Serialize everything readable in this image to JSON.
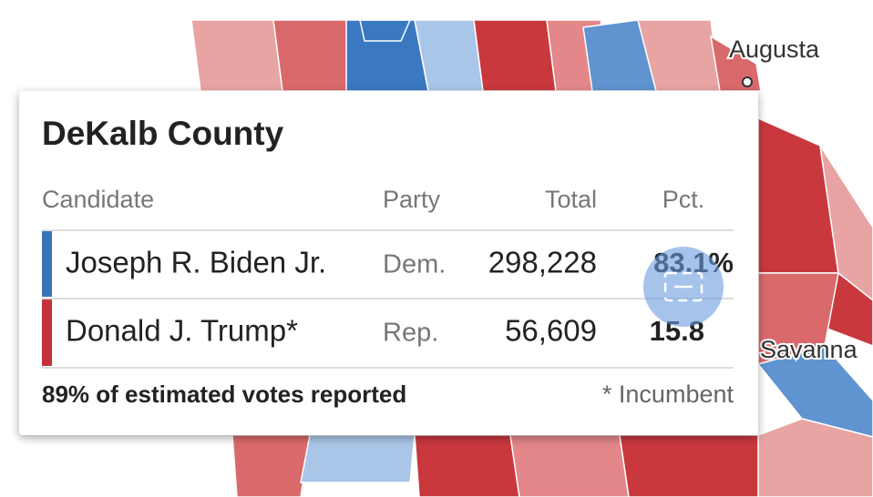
{
  "map_labels": [
    "Augusta",
    "Savanna"
  ],
  "tooltip": {
    "title": "DeKalb County",
    "columns": [
      "Candidate",
      "Party",
      "Total",
      "Pct."
    ],
    "rows": [
      [
        "Joseph R. Biden Jr.",
        "Dem.",
        "298,228",
        "83.1%"
      ],
      [
        "Donald J. Trump*",
        "Rep.",
        "56,609",
        "15.8"
      ]
    ],
    "footer": "89% of estimated votes reported",
    "note": "* Incumbent"
  }
}
